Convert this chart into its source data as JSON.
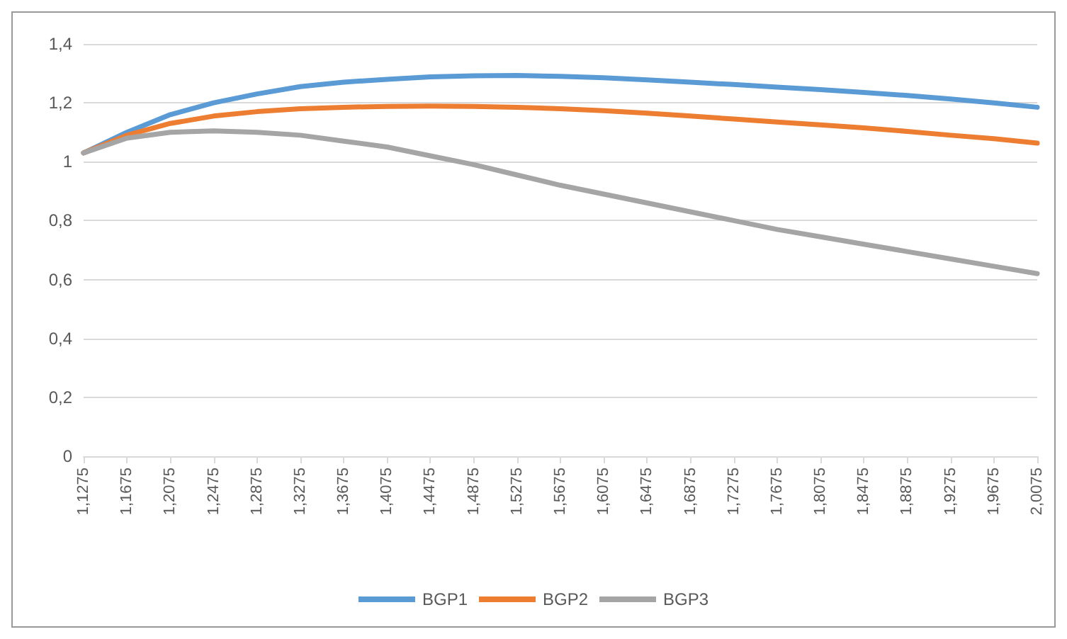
{
  "chart_data": {
    "type": "line",
    "categories": [
      "1,1275",
      "1,1675",
      "1,2075",
      "1,2475",
      "1,2875",
      "1,3275",
      "1,3675",
      "1,4075",
      "1,4475",
      "1,4875",
      "1,5275",
      "1,5675",
      "1,6075",
      "1,6475",
      "1,6875",
      "1,7275",
      "1,7675",
      "1,8075",
      "1,8475",
      "1,8875",
      "1,9275",
      "1,9675",
      "2,0075"
    ],
    "series": [
      {
        "name": "BGP1",
        "color": "#5b9bd5",
        "values": [
          1.03,
          1.1,
          1.16,
          1.2,
          1.23,
          1.255,
          1.27,
          1.28,
          1.288,
          1.292,
          1.293,
          1.29,
          1.285,
          1.278,
          1.27,
          1.262,
          1.253,
          1.245,
          1.235,
          1.225,
          1.213,
          1.2,
          1.185
        ]
      },
      {
        "name": "BGP2",
        "color": "#ed7d31",
        "values": [
          1.03,
          1.09,
          1.13,
          1.155,
          1.17,
          1.18,
          1.185,
          1.188,
          1.189,
          1.188,
          1.185,
          1.18,
          1.173,
          1.165,
          1.155,
          1.145,
          1.135,
          1.125,
          1.115,
          1.103,
          1.09,
          1.078,
          1.063
        ]
      },
      {
        "name": "BGP3",
        "color": "#a5a5a5",
        "values": [
          1.03,
          1.08,
          1.1,
          1.105,
          1.1,
          1.09,
          1.07,
          1.05,
          1.02,
          0.99,
          0.955,
          0.92,
          0.89,
          0.86,
          0.83,
          0.8,
          0.77,
          0.745,
          0.72,
          0.695,
          0.67,
          0.645,
          0.62
        ]
      }
    ],
    "ylim": [
      0,
      1.4
    ],
    "yticks": [
      0,
      {
        "value": 0.2,
        "label": "0,2"
      },
      {
        "value": 0.4,
        "label": "0,4"
      },
      {
        "value": 0.6,
        "label": "0,6"
      },
      {
        "value": 0.8,
        "label": "0,8"
      },
      1,
      {
        "value": 1.2,
        "label": "1,2"
      },
      {
        "value": 1.4,
        "label": "1,4"
      }
    ],
    "grid": "y",
    "legend": "bottom",
    "marker": "none",
    "line_style": "solid"
  }
}
